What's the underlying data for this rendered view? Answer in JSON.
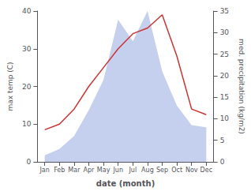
{
  "chart_data": {
    "type": "line",
    "xlabel": "date (month)",
    "ylabel": "max temp (C)",
    "y2label": "med. precipitation (kg/m2)",
    "categories": [
      "Jan",
      "Feb",
      "Mar",
      "Apr",
      "May",
      "Jun",
      "Jul",
      "Aug",
      "Sep",
      "Oct",
      "Nov",
      "Dec"
    ],
    "series": [
      {
        "type": "area",
        "axis": "y2",
        "color": "#c5cfee",
        "values": [
          1.5,
          3.0,
          6.0,
          12.0,
          19.0,
          33.0,
          28.0,
          35.0,
          21.0,
          13.0,
          8.5,
          8.0
        ]
      },
      {
        "type": "line",
        "color": "#cc3333",
        "values": [
          8.5,
          10.0,
          14.0,
          20.0,
          25.0,
          30.0,
          34.0,
          35.5,
          39.0,
          28.0,
          14.0,
          12.5
        ]
      }
    ],
    "ylim": [
      0,
      40
    ],
    "yticks": [
      0,
      10,
      20,
      30,
      40
    ],
    "y2lim": [
      0,
      35
    ],
    "y2ticks": [
      0,
      5,
      10,
      15,
      20,
      25,
      30,
      35
    ],
    "grid": false
  }
}
